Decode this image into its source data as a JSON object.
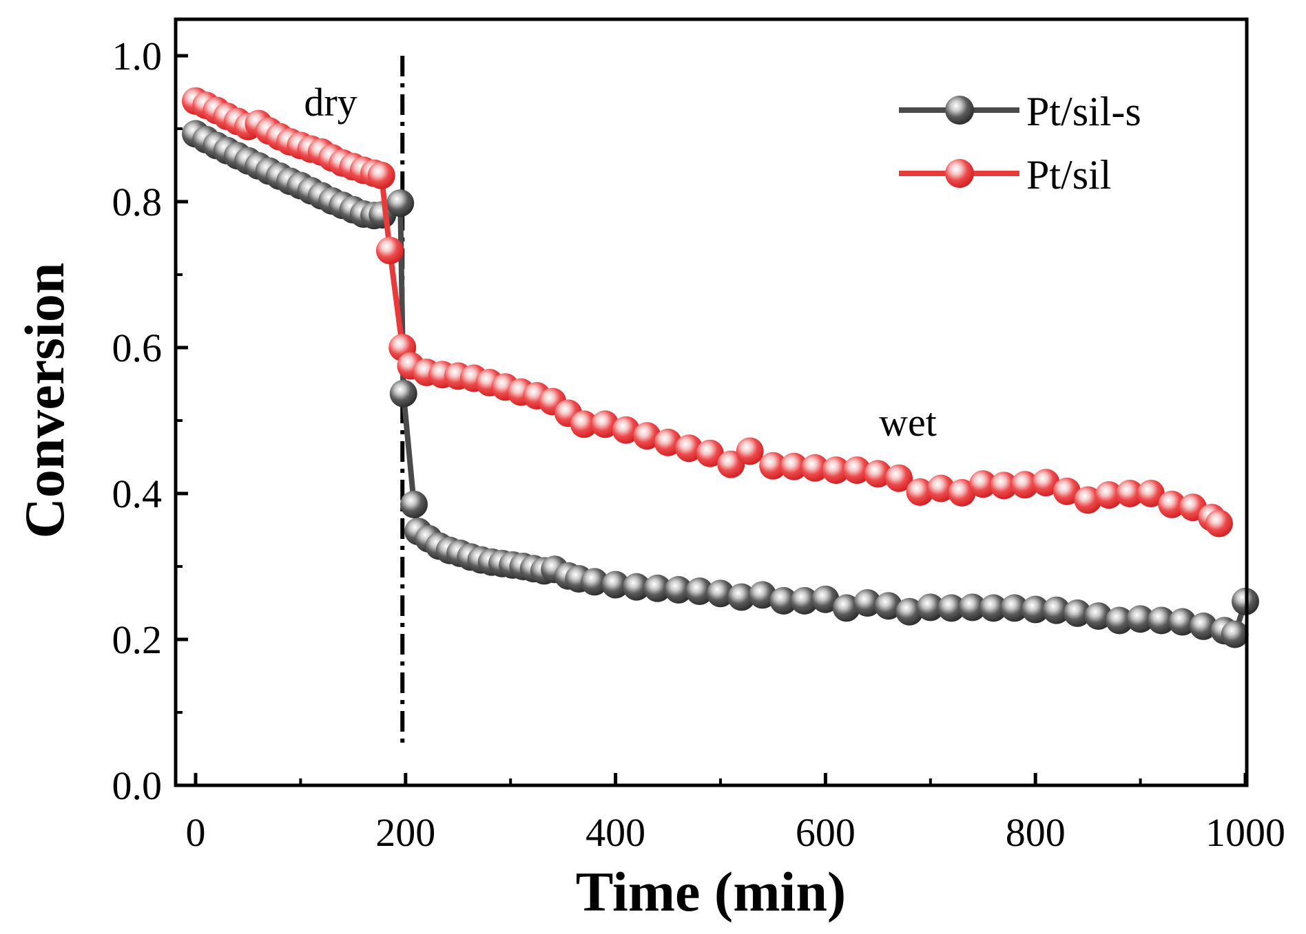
{
  "chart_data": {
    "type": "line",
    "xlabel": "Time (min)",
    "ylabel": "Conversion",
    "xlim": [
      -20,
      1000
    ],
    "ylim": [
      0.0,
      1.05
    ],
    "x_ticks": [
      0,
      200,
      400,
      600,
      800,
      1000
    ],
    "x_tick_labels": [
      "0",
      "200",
      "400",
      "600",
      "800",
      "1000"
    ],
    "y_ticks": [
      0.0,
      0.2,
      0.4,
      0.6,
      0.8,
      1.0
    ],
    "y_tick_labels": [
      "0.0",
      "0.2",
      "0.4",
      "0.6",
      "0.8",
      "1.0"
    ],
    "legend_position": "top-right",
    "annotations": [
      {
        "text": "dry",
        "x": 125,
        "y": 0.94
      },
      {
        "text": "wet",
        "x": 680,
        "y": 0.49
      }
    ],
    "vline": {
      "x": 197,
      "style": "dash-dot",
      "y_from": 0.055,
      "y_to": 1.0
    },
    "series": [
      {
        "name": "Pt/sil-s",
        "color": "#4a4a4a",
        "points": [
          [
            0,
            0.893
          ],
          [
            10,
            0.885
          ],
          [
            20,
            0.877
          ],
          [
            30,
            0.87
          ],
          [
            40,
            0.863
          ],
          [
            50,
            0.856
          ],
          [
            60,
            0.849
          ],
          [
            70,
            0.842
          ],
          [
            80,
            0.835
          ],
          [
            90,
            0.828
          ],
          [
            100,
            0.822
          ],
          [
            110,
            0.815
          ],
          [
            120,
            0.808
          ],
          [
            130,
            0.801
          ],
          [
            140,
            0.795
          ],
          [
            150,
            0.789
          ],
          [
            160,
            0.783
          ],
          [
            170,
            0.781
          ],
          [
            178,
            0.782
          ],
          [
            195,
            0.798
          ],
          [
            198,
            0.537
          ],
          [
            208,
            0.385
          ],
          [
            212,
            0.348
          ],
          [
            222,
            0.338
          ],
          [
            232,
            0.328
          ],
          [
            242,
            0.322
          ],
          [
            252,
            0.318
          ],
          [
            262,
            0.313
          ],
          [
            272,
            0.309
          ],
          [
            282,
            0.306
          ],
          [
            292,
            0.304
          ],
          [
            302,
            0.302
          ],
          [
            312,
            0.3
          ],
          [
            322,
            0.297
          ],
          [
            332,
            0.294
          ],
          [
            342,
            0.296
          ],
          [
            355,
            0.287
          ],
          [
            365,
            0.283
          ],
          [
            380,
            0.279
          ],
          [
            400,
            0.275
          ],
          [
            420,
            0.272
          ],
          [
            440,
            0.27
          ],
          [
            460,
            0.268
          ],
          [
            480,
            0.266
          ],
          [
            500,
            0.263
          ],
          [
            520,
            0.258
          ],
          [
            540,
            0.261
          ],
          [
            560,
            0.253
          ],
          [
            580,
            0.253
          ],
          [
            600,
            0.255
          ],
          [
            620,
            0.243
          ],
          [
            640,
            0.25
          ],
          [
            660,
            0.246
          ],
          [
            680,
            0.238
          ],
          [
            700,
            0.244
          ],
          [
            720,
            0.243
          ],
          [
            740,
            0.244
          ],
          [
            760,
            0.243
          ],
          [
            780,
            0.243
          ],
          [
            800,
            0.241
          ],
          [
            820,
            0.24
          ],
          [
            840,
            0.236
          ],
          [
            860,
            0.232
          ],
          [
            880,
            0.226
          ],
          [
            900,
            0.228
          ],
          [
            920,
            0.226
          ],
          [
            940,
            0.224
          ],
          [
            960,
            0.218
          ],
          [
            980,
            0.212
          ],
          [
            990,
            0.207
          ],
          [
            1000,
            0.252
          ]
        ]
      },
      {
        "name": "Pt/sil",
        "color": "#e8393b",
        "points": [
          [
            0,
            0.938
          ],
          [
            10,
            0.932
          ],
          [
            20,
            0.925
          ],
          [
            30,
            0.917
          ],
          [
            40,
            0.91
          ],
          [
            50,
            0.903
          ],
          [
            60,
            0.907
          ],
          [
            70,
            0.897
          ],
          [
            80,
            0.889
          ],
          [
            90,
            0.882
          ],
          [
            100,
            0.877
          ],
          [
            110,
            0.872
          ],
          [
            120,
            0.868
          ],
          [
            130,
            0.86
          ],
          [
            140,
            0.853
          ],
          [
            150,
            0.848
          ],
          [
            160,
            0.843
          ],
          [
            170,
            0.839
          ],
          [
            177,
            0.836
          ],
          [
            185,
            0.733
          ],
          [
            197,
            0.6
          ],
          [
            205,
            0.575
          ],
          [
            220,
            0.566
          ],
          [
            235,
            0.563
          ],
          [
            250,
            0.561
          ],
          [
            265,
            0.558
          ],
          [
            280,
            0.552
          ],
          [
            295,
            0.546
          ],
          [
            310,
            0.539
          ],
          [
            325,
            0.534
          ],
          [
            340,
            0.526
          ],
          [
            355,
            0.51
          ],
          [
            370,
            0.495
          ],
          [
            390,
            0.495
          ],
          [
            410,
            0.487
          ],
          [
            430,
            0.479
          ],
          [
            450,
            0.47
          ],
          [
            470,
            0.462
          ],
          [
            490,
            0.455
          ],
          [
            510,
            0.44
          ],
          [
            528,
            0.458
          ],
          [
            550,
            0.438
          ],
          [
            570,
            0.437
          ],
          [
            590,
            0.435
          ],
          [
            610,
            0.432
          ],
          [
            630,
            0.432
          ],
          [
            650,
            0.427
          ],
          [
            670,
            0.421
          ],
          [
            690,
            0.402
          ],
          [
            710,
            0.407
          ],
          [
            730,
            0.401
          ],
          [
            750,
            0.413
          ],
          [
            770,
            0.411
          ],
          [
            790,
            0.412
          ],
          [
            810,
            0.415
          ],
          [
            830,
            0.403
          ],
          [
            850,
            0.391
          ],
          [
            870,
            0.398
          ],
          [
            890,
            0.4
          ],
          [
            910,
            0.4
          ],
          [
            930,
            0.385
          ],
          [
            950,
            0.381
          ],
          [
            968,
            0.367
          ],
          [
            975,
            0.359
          ]
        ]
      }
    ]
  }
}
